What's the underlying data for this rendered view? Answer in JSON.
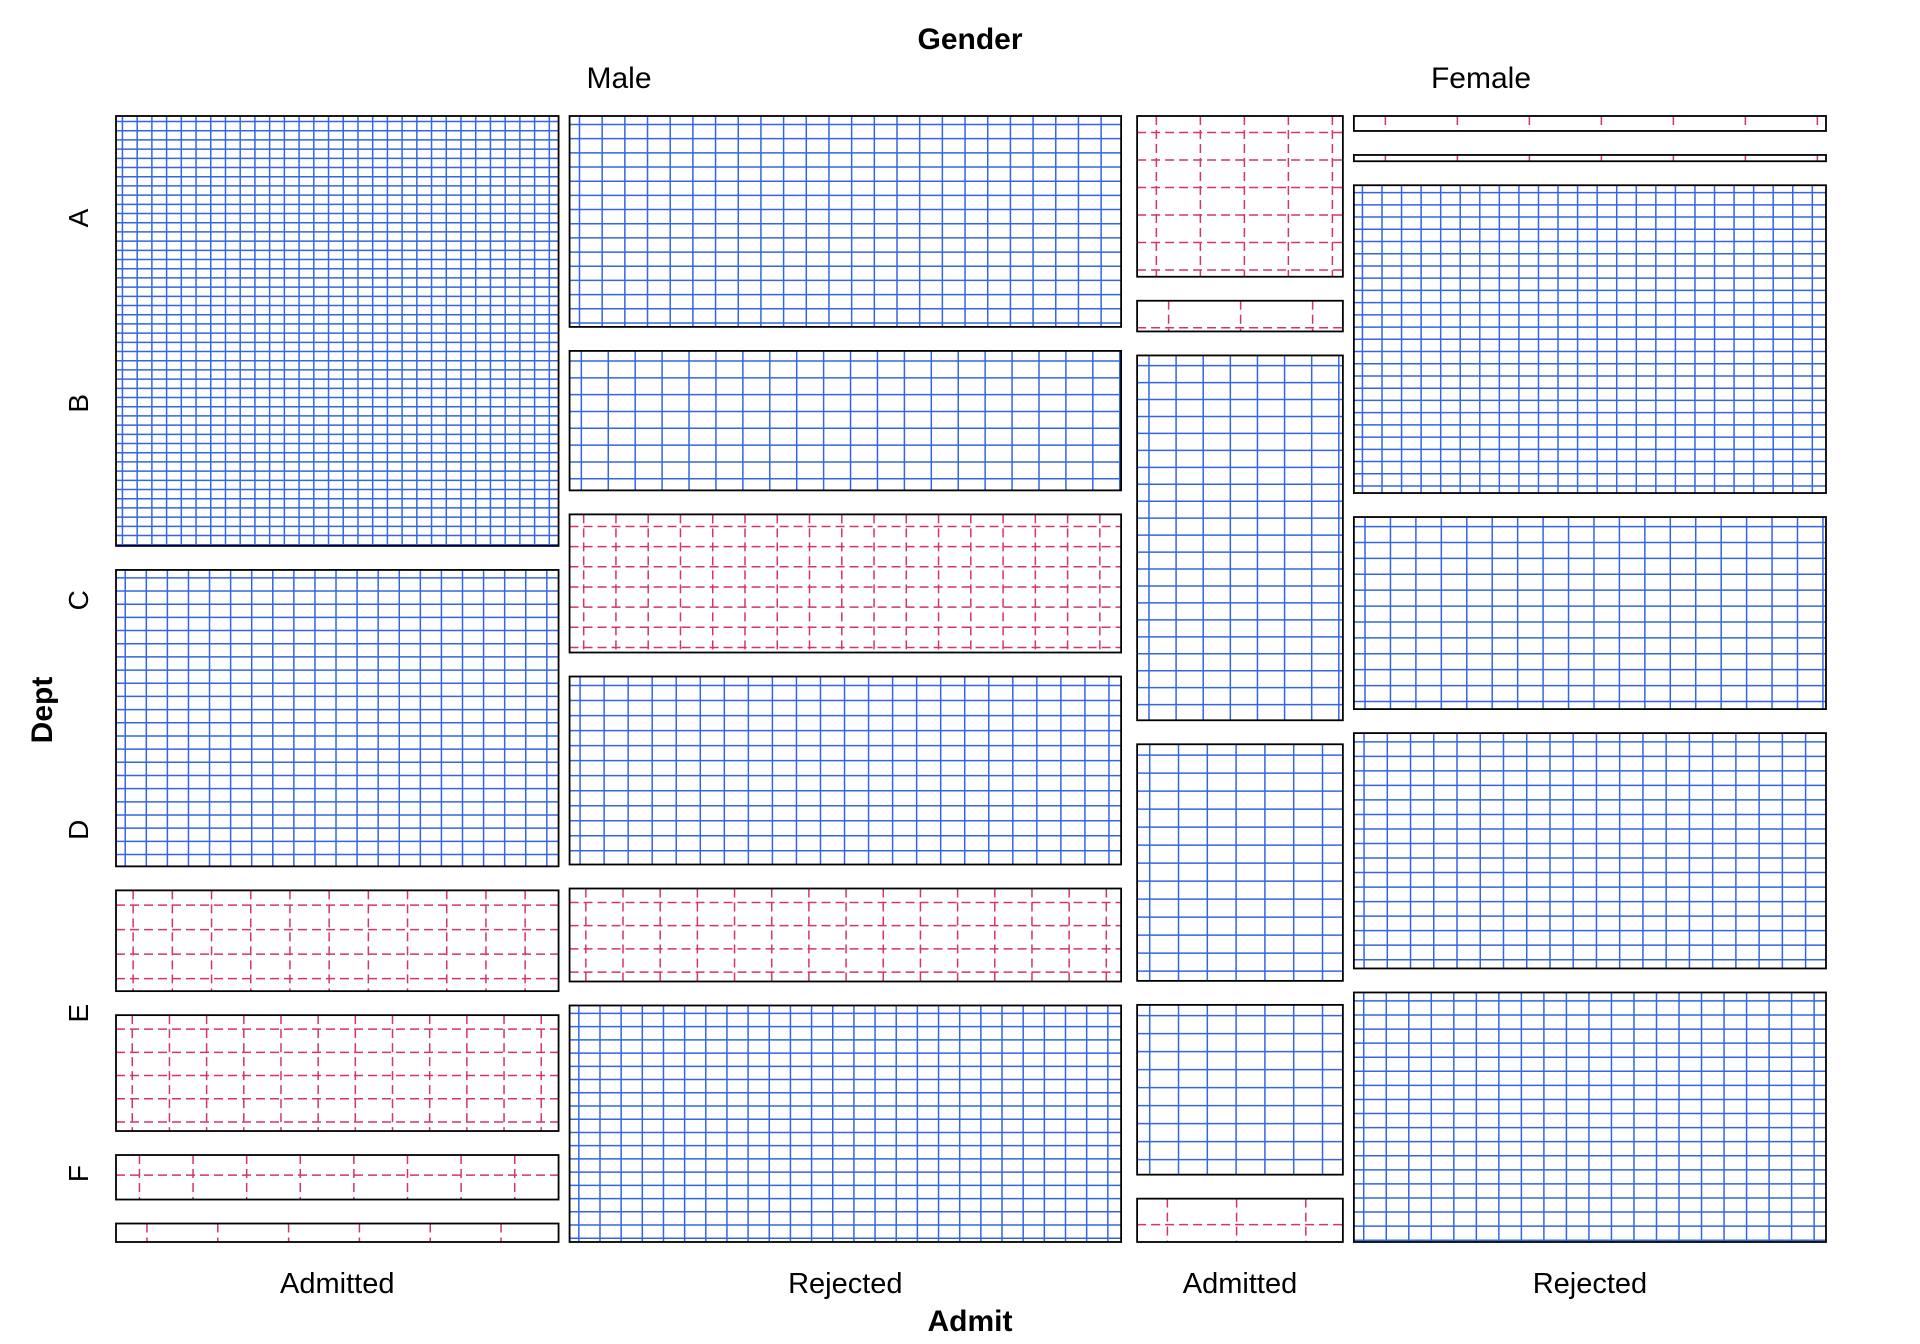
{
  "chart_data": {
    "type": "mosaic",
    "title": "",
    "column_variable": "Gender",
    "subcolumn_variable": "Admit",
    "row_variable": "Dept",
    "genders": [
      "Male",
      "Female"
    ],
    "admit_levels": [
      "Admitted",
      "Rejected"
    ],
    "depts": [
      "A",
      "B",
      "C",
      "D",
      "E",
      "F"
    ],
    "shading": "sign of residual: blue solid grid = positive, red dashed grid = negative; grid density = magnitude",
    "colors": {
      "positive": "#3366e6",
      "negative": "#d6336c",
      "border": "#000000"
    },
    "cells": [
      {
        "gender": "Male",
        "admit": "Admitted",
        "dept": "A",
        "count": 512,
        "sign": "positive"
      },
      {
        "gender": "Male",
        "admit": "Rejected",
        "dept": "A",
        "count": 313,
        "sign": "positive"
      },
      {
        "gender": "Male",
        "admit": "Admitted",
        "dept": "B",
        "count": 353,
        "sign": "positive"
      },
      {
        "gender": "Male",
        "admit": "Rejected",
        "dept": "B",
        "count": 207,
        "sign": "positive"
      },
      {
        "gender": "Male",
        "admit": "Admitted",
        "dept": "C",
        "count": 120,
        "sign": "negative"
      },
      {
        "gender": "Male",
        "admit": "Rejected",
        "dept": "C",
        "count": 205,
        "sign": "negative"
      },
      {
        "gender": "Male",
        "admit": "Admitted",
        "dept": "D",
        "count": 138,
        "sign": "negative"
      },
      {
        "gender": "Male",
        "admit": "Rejected",
        "dept": "D",
        "count": 279,
        "sign": "positive"
      },
      {
        "gender": "Male",
        "admit": "Admitted",
        "dept": "E",
        "count": 53,
        "sign": "negative"
      },
      {
        "gender": "Male",
        "admit": "Rejected",
        "dept": "E",
        "count": 138,
        "sign": "negative"
      },
      {
        "gender": "Male",
        "admit": "Admitted",
        "dept": "F",
        "count": 22,
        "sign": "negative"
      },
      {
        "gender": "Male",
        "admit": "Rejected",
        "dept": "F",
        "count": 351,
        "sign": "positive"
      },
      {
        "gender": "Female",
        "admit": "Admitted",
        "dept": "A",
        "count": 89,
        "sign": "negative"
      },
      {
        "gender": "Female",
        "admit": "Rejected",
        "dept": "A",
        "count": 19,
        "sign": "negative"
      },
      {
        "gender": "Female",
        "admit": "Admitted",
        "dept": "B",
        "count": 17,
        "sign": "negative"
      },
      {
        "gender": "Female",
        "admit": "Rejected",
        "dept": "B",
        "count": 8,
        "sign": "negative"
      },
      {
        "gender": "Female",
        "admit": "Admitted",
        "dept": "C",
        "count": 202,
        "sign": "positive"
      },
      {
        "gender": "Female",
        "admit": "Rejected",
        "dept": "C",
        "count": 391,
        "sign": "positive"
      },
      {
        "gender": "Female",
        "admit": "Admitted",
        "dept": "D",
        "count": 131,
        "sign": "positive"
      },
      {
        "gender": "Female",
        "admit": "Rejected",
        "dept": "D",
        "count": 244,
        "sign": "positive"
      },
      {
        "gender": "Female",
        "admit": "Admitted",
        "dept": "E",
        "count": 94,
        "sign": "positive"
      },
      {
        "gender": "Female",
        "admit": "Rejected",
        "dept": "E",
        "count": 299,
        "sign": "positive"
      },
      {
        "gender": "Female",
        "admit": "Admitted",
        "dept": "F",
        "count": 24,
        "sign": "negative"
      },
      {
        "gender": "Female",
        "admit": "Rejected",
        "dept": "F",
        "count": 317,
        "sign": "positive"
      }
    ]
  }
}
